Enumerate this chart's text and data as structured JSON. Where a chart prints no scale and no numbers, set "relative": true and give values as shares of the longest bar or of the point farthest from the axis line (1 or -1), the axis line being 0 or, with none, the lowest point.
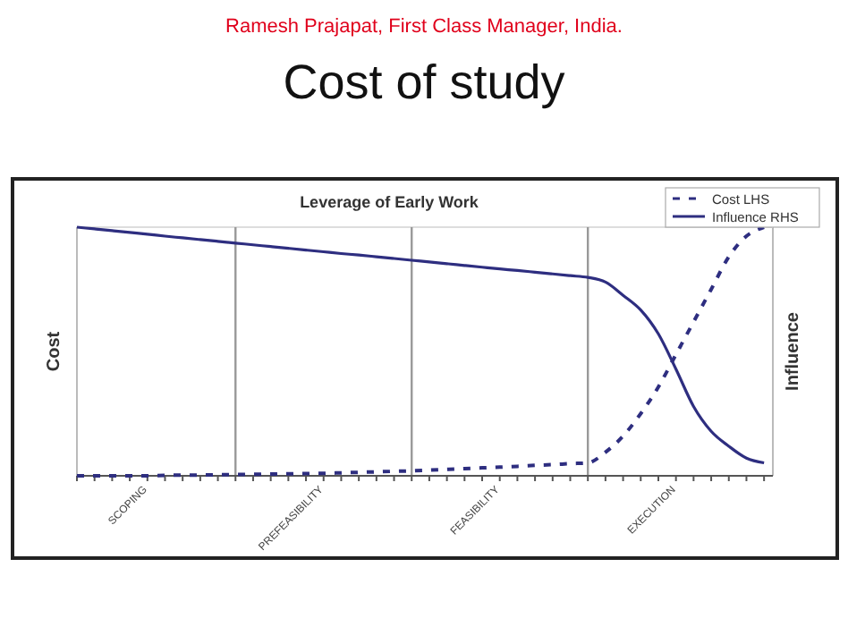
{
  "chart_data": {
    "type": "line",
    "title": "Cost of study",
    "subtitle": "Leverage of Early Work",
    "annotations": [
      "Ramesh Prajapat, First Class Manager, India."
    ],
    "ylabel": "Cost",
    "y2label": "Influence",
    "relative": true,
    "legend": "top right",
    "grid": "x",
    "categories": [
      null,
      null,
      null,
      null,
      "SCOPING",
      null,
      null,
      null,
      null,
      null,
      null,
      null,
      null,
      null,
      "PREFEASIBILITY",
      null,
      null,
      null,
      null,
      null,
      null,
      null,
      null,
      null,
      "FEASIBILITY",
      null,
      null,
      null,
      null,
      null,
      null,
      null,
      null,
      null,
      "EXECUTION",
      null,
      null,
      null,
      null,
      null
    ],
    "series": [
      {
        "name": "Cost LHS",
        "color": "#2e2e80",
        "line_style": "dashed",
        "values": [
          0,
          0,
          0,
          0,
          0,
          0.002,
          0.003,
          0.003,
          0.004,
          0.005,
          0.006,
          0.007,
          0.008,
          0.009,
          0.01,
          0.012,
          0.014,
          0.016,
          0.018,
          0.02,
          0.023,
          0.026,
          0.029,
          0.032,
          0.035,
          0.038,
          0.042,
          0.045,
          0.049,
          0.052,
          0.095,
          0.16,
          0.25,
          0.357,
          0.488,
          0.619,
          0.75,
          0.881,
          0.964,
          1
        ]
      },
      {
        "name": "Influence RHS",
        "color": "#2e2e80",
        "line_style": "solid",
        "values": [
          1,
          0.993,
          0.986,
          0.979,
          0.972,
          0.964,
          0.957,
          0.95,
          0.943,
          0.936,
          0.929,
          0.922,
          0.915,
          0.908,
          0.901,
          0.894,
          0.888,
          0.881,
          0.874,
          0.867,
          0.86,
          0.853,
          0.846,
          0.839,
          0.832,
          0.826,
          0.819,
          0.812,
          0.805,
          0.798,
          0.779,
          0.726,
          0.667,
          0.571,
          0.429,
          0.279,
          0.179,
          0.119,
          0.071,
          0.052
        ]
      }
    ]
  }
}
